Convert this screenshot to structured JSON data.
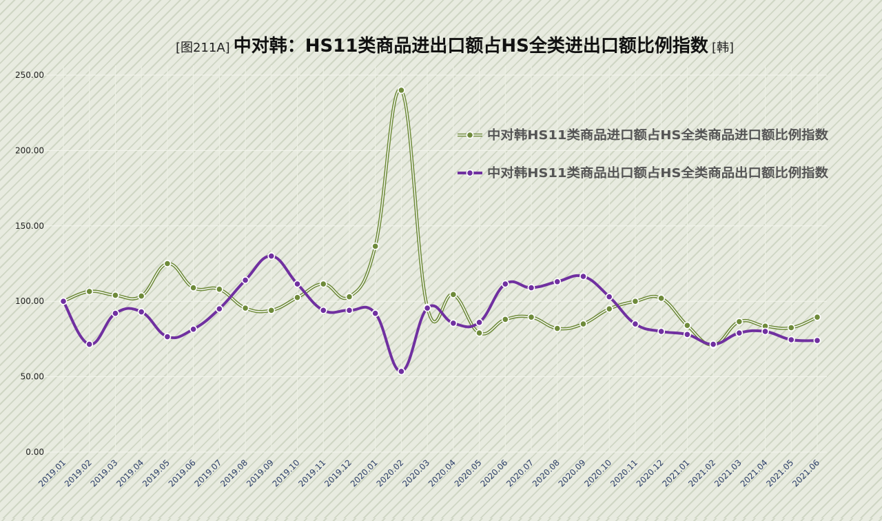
{
  "chart_data": {
    "type": "line",
    "title_prefix": "[图211A]",
    "title_main": "中对韩：HS11类商品进出口额占HS全类进出口额比例指数",
    "title_suffix": "[韩]",
    "xlabel": "",
    "ylabel": "",
    "ylim": [
      0,
      250
    ],
    "yticks": [
      "0.00",
      "50.00",
      "100.00",
      "150.00",
      "200.00",
      "250.00"
    ],
    "grid": true,
    "legend_position": "top-right",
    "categories": [
      "2019.01",
      "2019.02",
      "2019.03",
      "2019.04",
      "2019.05",
      "2019.06",
      "2019.07",
      "2019.08",
      "2019.09",
      "2019.10",
      "2019.11",
      "2019.12",
      "2020.01",
      "2020.02",
      "2020.03",
      "2020.04",
      "2020.05",
      "2020.06",
      "2020.07",
      "2020.08",
      "2020.09",
      "2020.10",
      "2020.11",
      "2020.12",
      "2021.01",
      "2021.02",
      "2021.03",
      "2021.04",
      "2021.05",
      "2021.06"
    ],
    "series": [
      {
        "name": "中对韩HS11类商品进口额占HS全类商品进口额比例指数",
        "color": "#6e8a3a",
        "style": "double",
        "values": [
          100,
          106.5,
          104,
          103.5,
          125,
          109,
          108,
          95.5,
          94,
          102.5,
          111.5,
          103,
          136.5,
          240,
          96,
          104.5,
          79,
          88,
          89.5,
          82,
          85,
          95,
          100,
          102,
          84,
          71,
          86.5,
          83.5,
          82.5,
          89.5
        ]
      },
      {
        "name": "中对韩HS11类商品出口额占HS全类商品出口额比例指数",
        "color": "#7030a0",
        "style": "solid",
        "values": [
          100,
          71.5,
          92,
          93,
          76.5,
          81.5,
          95,
          114,
          130,
          111.5,
          94,
          94,
          92,
          53.5,
          95.5,
          85.5,
          86,
          111.5,
          109,
          113,
          116.5,
          103,
          85,
          80,
          78,
          71.5,
          79,
          80,
          74.5,
          74
        ]
      }
    ]
  }
}
